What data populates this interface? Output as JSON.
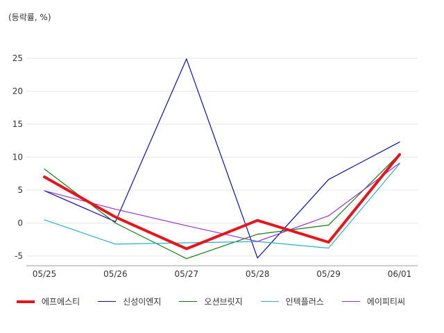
{
  "chart_data": {
    "type": "line",
    "unit_label": "(등락률, %)",
    "categories": [
      "05/25",
      "05/26",
      "05/27",
      "05/28",
      "05/29",
      "06/01"
    ],
    "ylim": [
      -6.5,
      28
    ],
    "yticks": [
      -5,
      0,
      5,
      10,
      15,
      20,
      25
    ],
    "grid": true,
    "legend_position": "bottom",
    "series": [
      {
        "name": "에프에스티",
        "color": "#e8141b",
        "width": 4,
        "values": [
          7.0,
          0.9,
          -3.9,
          0.4,
          -2.9,
          10.4
        ]
      },
      {
        "name": "신성이엔지",
        "color": "#0a0ab8",
        "width": 1.2,
        "values": [
          4.9,
          0.2,
          24.9,
          -5.3,
          6.6,
          12.3
        ]
      },
      {
        "name": "오션브릿지",
        "color": "#0f7a0f",
        "width": 1.2,
        "values": [
          8.2,
          0.0,
          -5.4,
          -1.7,
          -0.3,
          10.5
        ]
      },
      {
        "name": "인텍플러스",
        "color": "#26b3c0",
        "width": 1.2,
        "values": [
          0.5,
          -3.2,
          -3.0,
          -2.8,
          -3.8,
          9.0
        ]
      },
      {
        "name": "에이피티씨",
        "color": "#9a33cc",
        "width": 1.2,
        "values": [
          4.9,
          2.1,
          -0.4,
          -2.8,
          1.1,
          9.1
        ]
      }
    ]
  }
}
